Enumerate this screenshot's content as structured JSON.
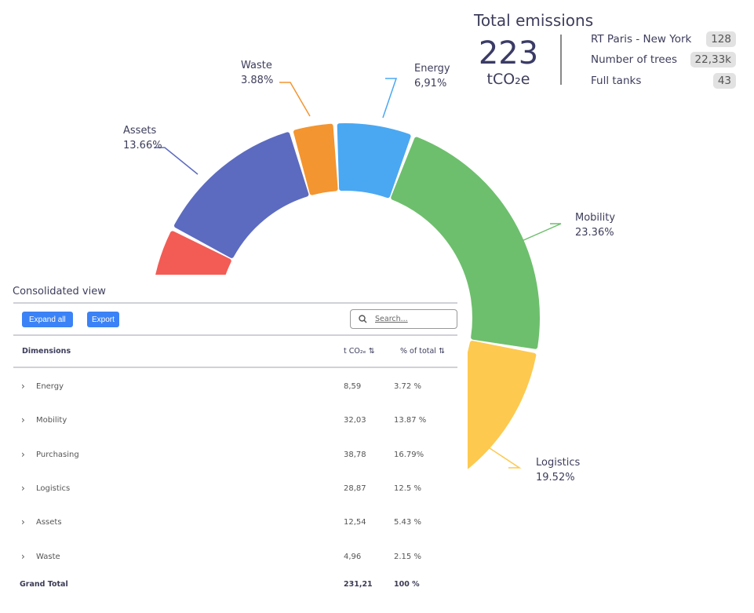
{
  "chart_data": {
    "type": "pie",
    "style": "donut-gauge",
    "slices": [
      {
        "label": null,
        "value": null,
        "color": "#f25c54"
      },
      {
        "label": "Assets",
        "value_label": "13.66%",
        "value": 13.66,
        "color": "#5c6bc0"
      },
      {
        "label": "Waste",
        "value_label": "3.88%",
        "value": 3.88,
        "color": "#f39530"
      },
      {
        "label": "Energy",
        "value_label": "6,91%",
        "value": 6.91,
        "color": "#4aa8f2"
      },
      {
        "label": "Mobility",
        "value_label": "23.36%",
        "value": 23.36,
        "color": "#6dbf6d"
      },
      {
        "label": "Logistics",
        "value_label": "19.52%",
        "value": 19.52,
        "color": "#fdc94f"
      }
    ]
  },
  "totals": {
    "title": "Total emissions",
    "value": "223",
    "unit": "tCO₂e",
    "items": [
      {
        "label": "RT Paris - New York",
        "value": "128"
      },
      {
        "label": "Number of trees",
        "value": "22,33k"
      },
      {
        "label": "Full tanks",
        "value": "43"
      }
    ]
  },
  "table": {
    "title": "Consolidated view",
    "expand_label": "Expand all",
    "export_label": "Export",
    "search_placeholder": "Search...",
    "headers": {
      "dimensions": "Dimensions",
      "tco2": "t CO₂ₑ ⇅",
      "pct": "% of total ⇅"
    },
    "rows": [
      {
        "name": "Energy",
        "value": "8,59",
        "pct": "3.72 %"
      },
      {
        "name": "Mobility",
        "value": "32,03",
        "pct": "13.87 %"
      },
      {
        "name": "Purchasing",
        "value": "38,78",
        "pct": "16.79%"
      },
      {
        "name": "Logistics",
        "value": "28,87",
        "pct": "12.5 %"
      },
      {
        "name": "Assets",
        "value": "12,54",
        "pct": "5.43 %"
      },
      {
        "name": "Waste",
        "value": "4,96",
        "pct": "2.15 %"
      }
    ],
    "total": {
      "name": "Grand Total",
      "value": "231,21",
      "pct": "100 %"
    }
  }
}
